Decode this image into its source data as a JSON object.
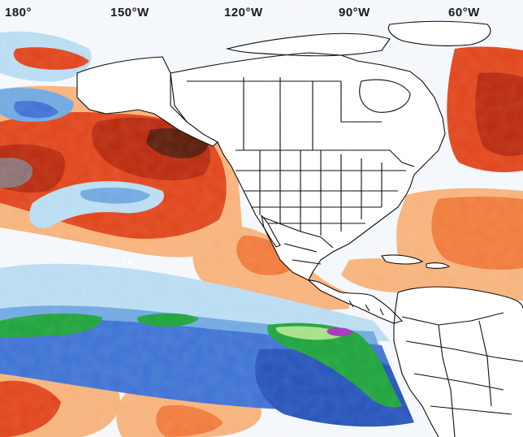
{
  "map": {
    "longitude_labels": [
      "180°",
      "150°W",
      "120°W",
      "90°W",
      "60°W"
    ],
    "colors": {
      "very_warm": "#5a1a08",
      "warm_dark": "#b9280c",
      "warm": "#e0441a",
      "warm_mid": "#f07a3a",
      "warm_light": "#f7b27a",
      "neutral_warm": "#fbe2c2",
      "neutral": "#f4f7fb",
      "cool_light": "#b9dcf2",
      "cool_mid": "#6fa8e0",
      "cool": "#3d72d4",
      "cool_dark": "#2452b8",
      "green": "#1da33a",
      "pale_green": "#a5df88",
      "violet": "#a233b6",
      "anomaly_extreme": "#8c7070",
      "land": "#ffffff",
      "boundary": "#000000"
    }
  }
}
